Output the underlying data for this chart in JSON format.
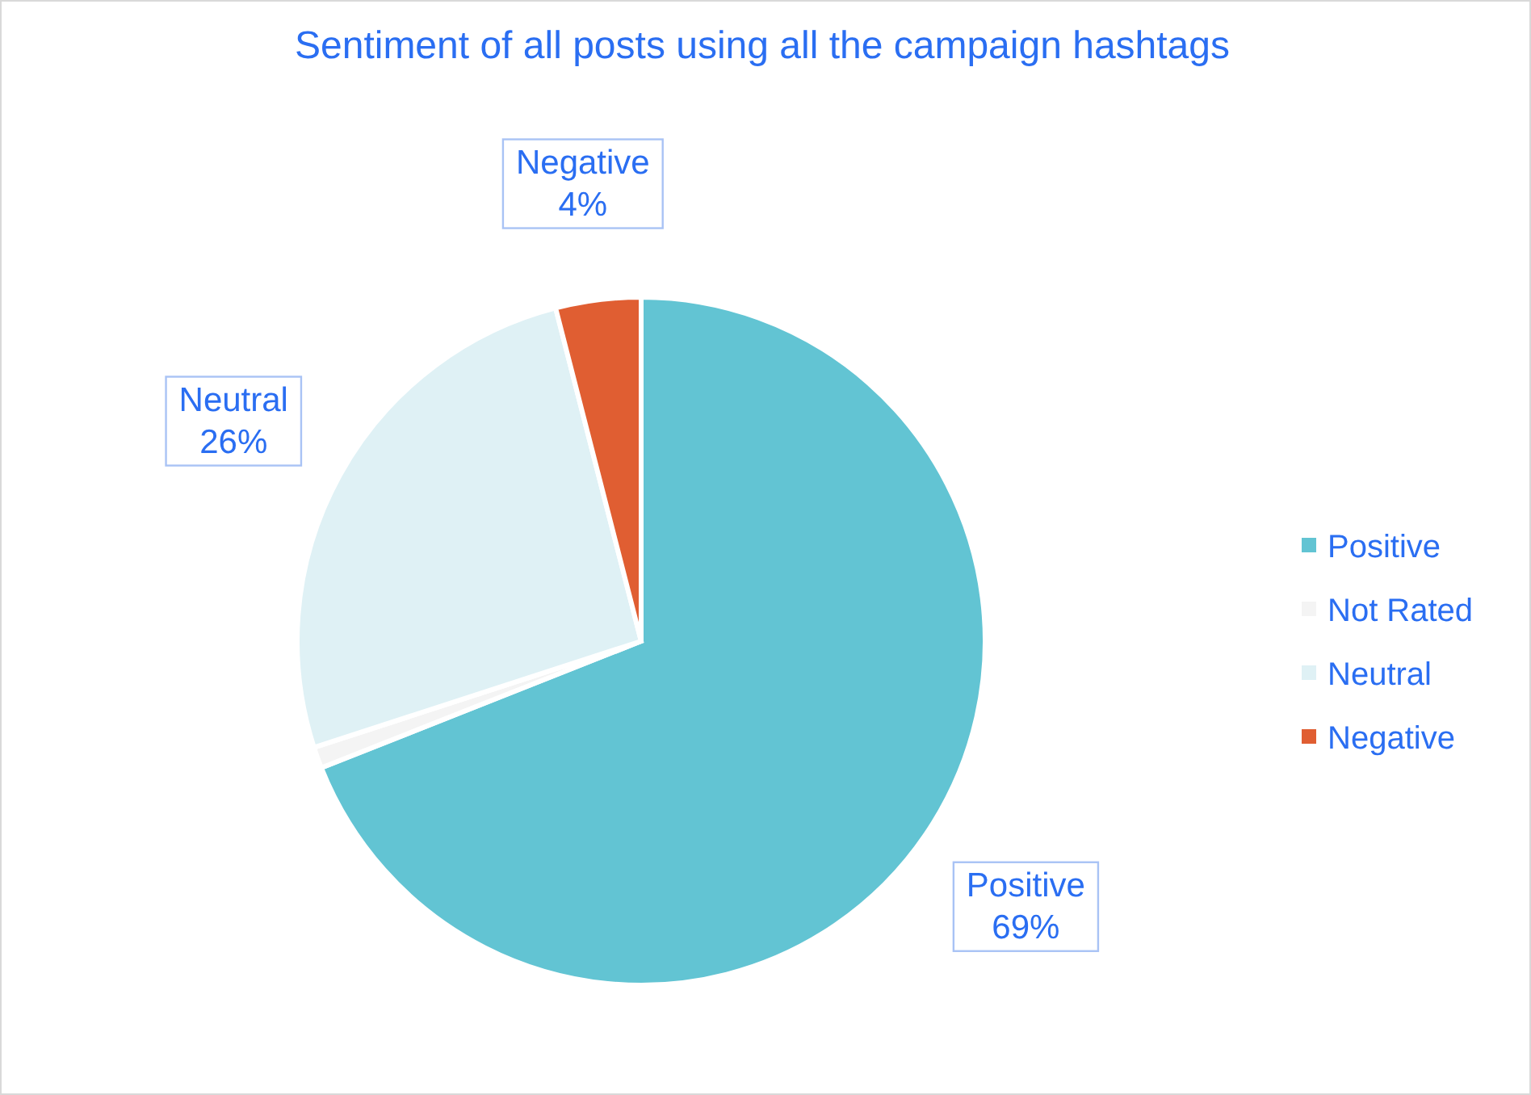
{
  "chart_data": {
    "type": "pie",
    "title": "Sentiment of all posts using all the campaign hashtags",
    "categories": [
      "Positive",
      "Not Rated",
      "Neutral",
      "Negative"
    ],
    "values": [
      69,
      1,
      26,
      4
    ],
    "colors": [
      "#62c4d3",
      "#f4f4f4",
      "#dff1f5",
      "#e05e32"
    ],
    "value_labels": [
      "69%",
      null,
      "26%",
      "4%"
    ],
    "legend": "right"
  }
}
